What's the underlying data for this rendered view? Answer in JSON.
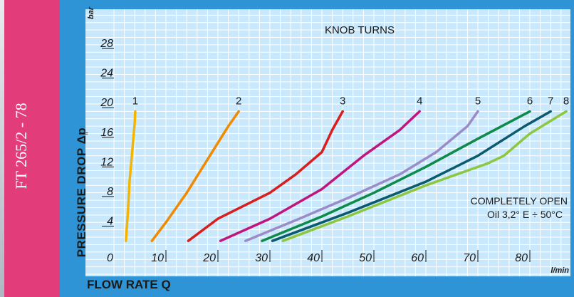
{
  "side_code": "FT 265/2 - 78",
  "chart_data": {
    "type": "line",
    "title": "KNOB TURNS",
    "xlabel": "FLOW RATE Q",
    "ylabel": "PRESSURE DROP Δp",
    "x_unit": "l/min",
    "y_unit": "bar",
    "xlim": [
      0,
      88
    ],
    "ylim": [
      0,
      28
    ],
    "x_ticks": [
      0,
      10,
      20,
      30,
      40,
      50,
      60,
      70,
      80
    ],
    "y_ticks": [
      4,
      8,
      12,
      16,
      20,
      24,
      28
    ],
    "grid": true,
    "annotation_lines": [
      "COMPLETELY OPEN",
      "Oil 3,2° E ÷ 50°C"
    ],
    "series": [
      {
        "name": "1",
        "color": "#f5b400",
        "points": [
          [
            2.3,
            2
          ],
          [
            2.7,
            6
          ],
          [
            3.0,
            10
          ],
          [
            3.5,
            14
          ],
          [
            4.0,
            18
          ],
          [
            4.1,
            19.5
          ]
        ]
      },
      {
        "name": "2",
        "color": "#f08a00",
        "points": [
          [
            7.3,
            2
          ],
          [
            10,
            4.5
          ],
          [
            14,
            8.5
          ],
          [
            18,
            13
          ],
          [
            22,
            17.5
          ],
          [
            24,
            19.5
          ]
        ]
      },
      {
        "name": "3",
        "color": "#d81e1e",
        "points": [
          [
            14.3,
            2
          ],
          [
            20,
            5
          ],
          [
            30,
            8.5
          ],
          [
            35,
            11
          ],
          [
            40,
            14
          ],
          [
            42,
            17
          ],
          [
            44,
            19.5
          ]
        ]
      },
      {
        "name": "4",
        "color": "#c0157e",
        "points": [
          [
            20.5,
            2
          ],
          [
            30,
            5
          ],
          [
            40,
            9
          ],
          [
            48,
            13.5
          ],
          [
            50,
            14.5
          ],
          [
            55,
            17
          ],
          [
            58.8,
            19.5
          ]
        ]
      },
      {
        "name": "5",
        "color": "#9b8cc8",
        "points": [
          [
            25.3,
            2
          ],
          [
            35,
            4.8
          ],
          [
            45,
            7.8
          ],
          [
            55,
            11
          ],
          [
            62,
            14
          ],
          [
            68,
            17.5
          ],
          [
            70,
            19.5
          ]
        ]
      },
      {
        "name": "6",
        "color": "#0e8a4a",
        "points": [
          [
            28.5,
            2
          ],
          [
            40,
            5.3
          ],
          [
            50,
            8.5
          ],
          [
            60,
            12
          ],
          [
            70,
            15.8
          ],
          [
            80,
            19.5
          ]
        ]
      },
      {
        "name": "7",
        "color": "#0b5a6e",
        "points": [
          [
            30.5,
            2
          ],
          [
            45,
            5.8
          ],
          [
            60,
            10
          ],
          [
            70,
            13.5
          ],
          [
            79,
            17.5
          ],
          [
            84,
            19.5
          ]
        ]
      },
      {
        "name": "8",
        "color": "#8dc63f",
        "points": [
          [
            32.5,
            2
          ],
          [
            45,
            5.3
          ],
          [
            60,
            9.5
          ],
          [
            72,
            12.5
          ],
          [
            75,
            13.5
          ],
          [
            80,
            16.5
          ],
          [
            87,
            19.5
          ]
        ]
      }
    ]
  }
}
